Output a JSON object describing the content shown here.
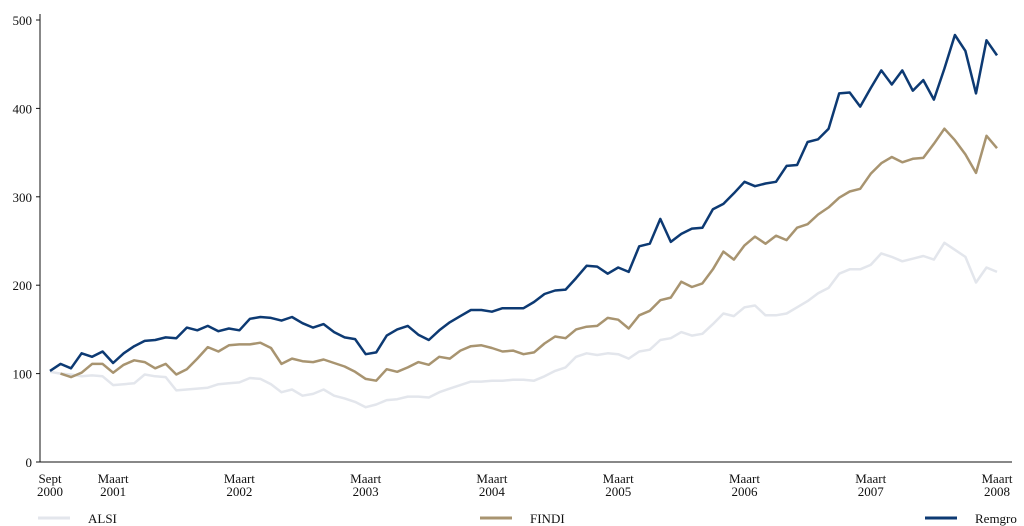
{
  "chart_data": {
    "type": "line",
    "categories": [
      "Sept 2000",
      null,
      null,
      null,
      null,
      null,
      "Maart 2001",
      null,
      null,
      null,
      null,
      null,
      null,
      null,
      null,
      null,
      null,
      null,
      "Maart 2002",
      null,
      null,
      null,
      null,
      null,
      null,
      null,
      null,
      null,
      null,
      null,
      "Maart 2003",
      null,
      null,
      null,
      null,
      null,
      null,
      null,
      null,
      null,
      null,
      null,
      "Maart 2004",
      null,
      null,
      null,
      null,
      null,
      null,
      null,
      null,
      null,
      null,
      null,
      "Maart 2005",
      null,
      null,
      null,
      null,
      null,
      null,
      null,
      null,
      null,
      null,
      null,
      "Maart 2006",
      null,
      null,
      null,
      null,
      null,
      null,
      null,
      null,
      null,
      null,
      null,
      "Maart 2007",
      null,
      null,
      null,
      null,
      null,
      null,
      null,
      null,
      null,
      null,
      null,
      "Maart 2008"
    ],
    "series": [
      {
        "name": "ALSI",
        "color": "#e3e6ec",
        "values": [
          102,
          100,
          99,
          97,
          98,
          97,
          87,
          88,
          89,
          99,
          97,
          96,
          81,
          82,
          83,
          84,
          88,
          89,
          90,
          95,
          94,
          88,
          79,
          82,
          75,
          77,
          82,
          75,
          72,
          68,
          62,
          65,
          70,
          71,
          74,
          74,
          73,
          79,
          83,
          87,
          91,
          91,
          92,
          92,
          93,
          93,
          92,
          97,
          103,
          107,
          119,
          123,
          121,
          123,
          122,
          117,
          125,
          127,
          138,
          140,
          147,
          143,
          145,
          156,
          168,
          165,
          175,
          177,
          166,
          166,
          168,
          175,
          182,
          191,
          197,
          213,
          218,
          218,
          223,
          236,
          232,
          227,
          230,
          233,
          229,
          248,
          240,
          232,
          203,
          220,
          215
        ]
      },
      {
        "name": "FINDI",
        "color": "#a89470",
        "values": [
          null,
          100,
          96,
          101,
          111,
          111,
          101,
          110,
          115,
          113,
          106,
          111,
          99,
          105,
          117,
          130,
          125,
          132,
          133,
          133,
          135,
          129,
          111,
          117,
          114,
          113,
          116,
          112,
          108,
          102,
          94,
          92,
          105,
          102,
          107,
          113,
          110,
          119,
          117,
          126,
          131,
          132,
          129,
          125,
          126,
          122,
          124,
          134,
          142,
          140,
          150,
          153,
          154,
          163,
          161,
          151,
          166,
          171,
          183,
          186,
          204,
          198,
          202,
          218,
          238,
          229,
          245,
          255,
          247,
          256,
          251,
          265,
          269,
          280,
          288,
          299,
          306,
          309,
          326,
          338,
          345,
          339,
          343,
          344,
          360,
          377,
          364,
          348,
          327,
          369,
          355
        ]
      },
      {
        "name": "Remgro",
        "color": "#0d3a73",
        "values": [
          103,
          111,
          106,
          123,
          119,
          125,
          112,
          123,
          131,
          137,
          138,
          141,
          140,
          152,
          149,
          154,
          148,
          151,
          149,
          162,
          164,
          163,
          160,
          164,
          157,
          152,
          156,
          147,
          141,
          139,
          122,
          124,
          143,
          150,
          154,
          144,
          138,
          149,
          158,
          165,
          172,
          172,
          170,
          174,
          174,
          174,
          181,
          190,
          194,
          195,
          208,
          222,
          221,
          213,
          220,
          215,
          244,
          247,
          275,
          249,
          258,
          264,
          265,
          286,
          292,
          304,
          317,
          312,
          315,
          317,
          335,
          336,
          362,
          365,
          377,
          417,
          418,
          402,
          423,
          443,
          427,
          443,
          420,
          432,
          410,
          445,
          483,
          465,
          417,
          477,
          460
        ]
      }
    ],
    "ylim": [
      0,
      500
    ],
    "yticks": [
      0,
      100,
      200,
      300,
      400,
      500
    ]
  }
}
